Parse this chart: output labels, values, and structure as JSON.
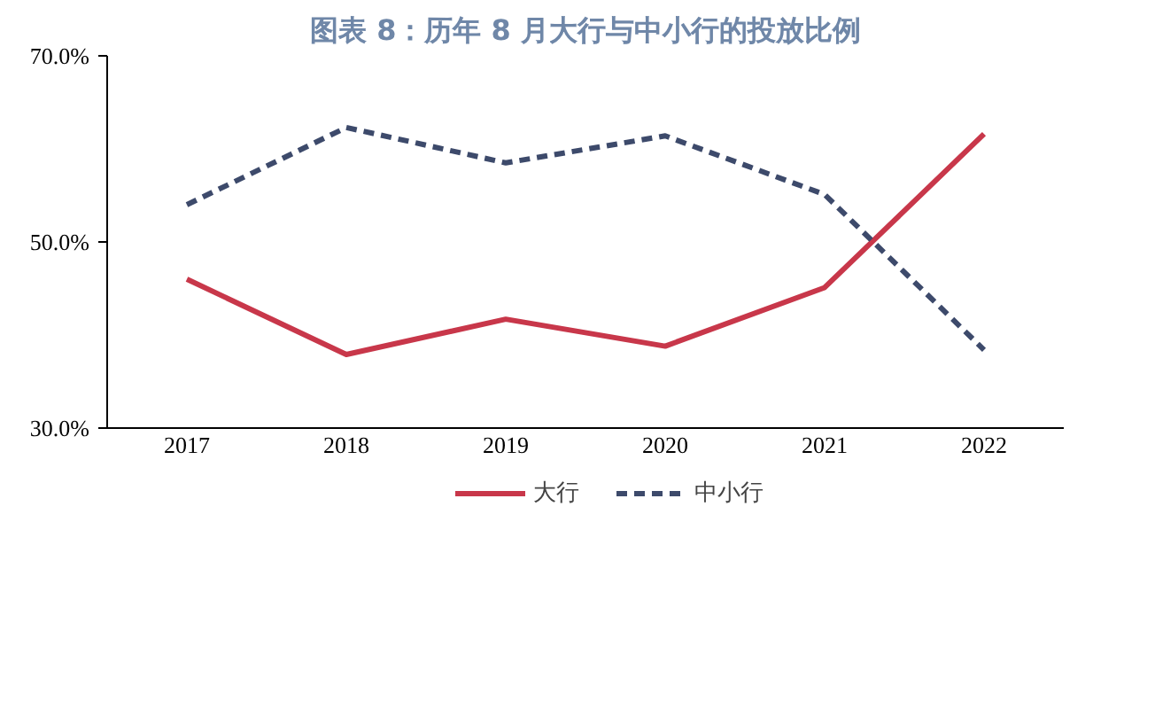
{
  "chart_data": {
    "type": "line",
    "title": "图表 8：历年 8 月大行与中小行的投放比例",
    "categories": [
      "2017",
      "2018",
      "2019",
      "2020",
      "2021",
      "2022"
    ],
    "series": [
      {
        "name": "大行",
        "color": "#c8374a",
        "values": [
          46.0,
          37.9,
          41.7,
          38.8,
          45.1,
          61.6
        ],
        "line_style": "solid"
      },
      {
        "name": "中小行",
        "color": "#3d4a6b",
        "values": [
          54.0,
          62.3,
          58.5,
          61.4,
          55.1,
          38.4
        ],
        "line_style": "dashed"
      }
    ],
    "ylim": [
      30,
      70
    ],
    "yticks": [
      {
        "value": 30,
        "label": "30.0%"
      },
      {
        "value": 50,
        "label": "50.0%"
      },
      {
        "value": 70,
        "label": "70.0%"
      }
    ],
    "grid": false,
    "legend": "bottom",
    "marker": "none"
  }
}
